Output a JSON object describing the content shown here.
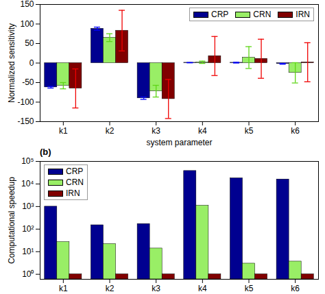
{
  "chart_data": [
    {
      "type": "bar",
      "xlabel": "system parameter",
      "ylabel": "Normalized sensitivity",
      "categories": [
        "k1",
        "k2",
        "k3",
        "k4",
        "k5",
        "k6"
      ],
      "series": [
        {
          "name": "CRP",
          "color": "#000090",
          "values": [
            -62,
            88,
            -90,
            1,
            1,
            -2
          ],
          "errors": [
            2,
            4,
            3,
            0.5,
            1,
            1
          ]
        },
        {
          "name": "CRN",
          "color": "#99ee66",
          "values": [
            -58,
            65,
            -72,
            2,
            14,
            -25
          ],
          "errors": [
            8,
            10,
            15,
            3,
            28,
            26
          ]
        },
        {
          "name": "IRN",
          "color": "#800000",
          "values": [
            -65,
            83,
            -92,
            18,
            11,
            2
          ],
          "errors": [
            50,
            52,
            50,
            50,
            50,
            50
          ]
        }
      ],
      "ylim": [
        -150,
        150
      ],
      "yticks": [
        -150,
        -100,
        -50,
        0,
        50,
        100,
        150
      ],
      "legend": "top-right"
    },
    {
      "type": "bar",
      "title": "(b)",
      "ylabel": "Computational speedup",
      "categories": [
        "k1",
        "k2",
        "k3",
        "k4",
        "k5",
        "k6"
      ],
      "series": [
        {
          "name": "CRP",
          "color": "#000090",
          "values": [
            1000,
            150,
            170,
            38000,
            18000,
            16000
          ]
        },
        {
          "name": "CRN",
          "color": "#99ee66",
          "values": [
            27,
            22,
            14,
            1100,
            3,
            3.7
          ]
        },
        {
          "name": "IRN",
          "color": "#800000",
          "values": [
            1,
            1,
            1,
            1,
            1,
            1
          ]
        }
      ],
      "log": "y",
      "ylim": [
        0.6,
        100000
      ],
      "yticks": [
        {
          "value": 1,
          "label": "10⁰"
        },
        {
          "value": 10,
          "label": "10¹"
        },
        {
          "value": 100,
          "label": "10²"
        },
        {
          "value": 1000,
          "label": "10³"
        },
        {
          "value": 10000,
          "label": "10⁴"
        },
        {
          "value": 100000,
          "label": "10⁵"
        }
      ],
      "legend": "top-left"
    }
  ]
}
